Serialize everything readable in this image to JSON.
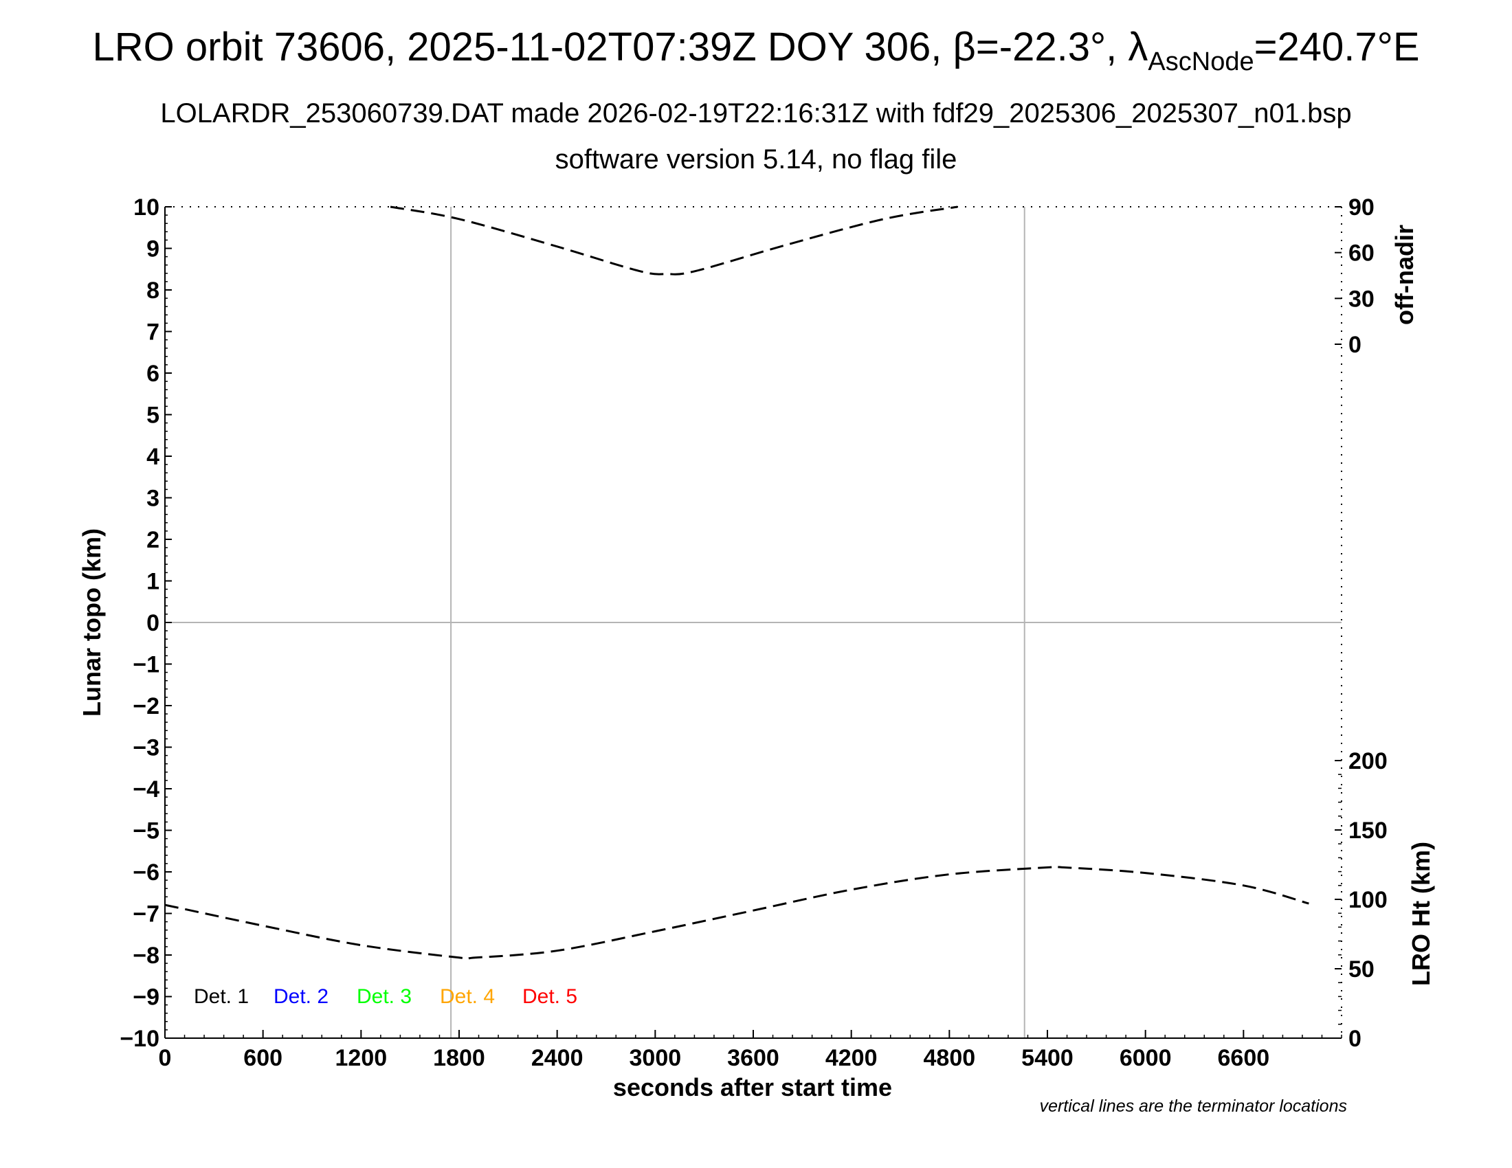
{
  "chart_data": {
    "type": "line",
    "title": {
      "prefix": "LRO orbit 73606, 2025-11-02T07:39Z DOY 306, ",
      "beta_symbol": "β",
      "beta_value": "=-22.3°, ",
      "lambda_symbol": "λ",
      "lambda_subscript": "AscNode",
      "lambda_value": "=240.7°E"
    },
    "subtitle1": "LOLARDR_253060739.DAT made 2026-02-19T22:16:31Z with fdf29_2025306_2025307_n01.bsp",
    "subtitle2": "software version 5.14, no flag file",
    "xlabel": "seconds after start time",
    "ylabel": "Lunar topo (km)",
    "right_label_top": "off-nadir",
    "right_label_bottom": "LRO Ht (km)",
    "note": "vertical lines are the terminator locations",
    "xlim": [
      0,
      7200
    ],
    "ylim": [
      -10,
      10
    ],
    "xticks": [
      0,
      600,
      1200,
      1800,
      2400,
      3000,
      3600,
      4200,
      4800,
      5400,
      6000,
      6600
    ],
    "yticks": [
      10,
      9,
      8,
      7,
      6,
      5,
      4,
      3,
      2,
      1,
      0,
      -1,
      -2,
      -3,
      -4,
      -5,
      -6,
      -7,
      -8,
      -9,
      -10
    ],
    "ytick_labels": [
      "10",
      "9",
      "8",
      "7",
      "6",
      "5",
      "4",
      "3",
      "2",
      "1",
      "0",
      "−1",
      "−2",
      "−3",
      "−4",
      "−5",
      "−6",
      "−7",
      "−8",
      "−9",
      "−10"
    ],
    "off_nadir_ticks": [
      {
        "label": "90",
        "value": 90
      },
      {
        "label": "60",
        "value": 60
      },
      {
        "label": "30",
        "value": 30
      },
      {
        "label": "0",
        "value": 0
      }
    ],
    "lro_ht_ticks": [
      {
        "label": "200",
        "value": 200
      },
      {
        "label": "150",
        "value": 150
      },
      {
        "label": "100",
        "value": 100
      },
      {
        "label": "50",
        "value": 50
      },
      {
        "label": "0",
        "value": 0
      }
    ],
    "terminator_lines_x": [
      1750,
      5260
    ],
    "grid": "horizontal line at 0 and terminator verticals",
    "legend_position": "bottom-left",
    "legend": [
      {
        "label": "Det. 1",
        "color": "#000000"
      },
      {
        "label": "Det. 2",
        "color": "#0000ff"
      },
      {
        "label": "Det. 3",
        "color": "#00ff00"
      },
      {
        "label": "Det. 4",
        "color": "#ffa500"
      },
      {
        "label": "Det. 5",
        "color": "#ff0000"
      }
    ],
    "series": [
      {
        "axis": "off-nadir (deg)",
        "style": "dashed",
        "x": [
          1380,
          1800,
          2400,
          2900,
          3070,
          3250,
          3800,
          4400,
          4850
        ],
        "values": [
          90,
          82,
          64,
          48,
          46,
          48,
          65,
          82,
          90
        ]
      },
      {
        "axis": "LRO Ht (km)",
        "style": "dashed",
        "x": [
          0,
          600,
          1200,
          1800,
          1900,
          2400,
          3000,
          3600,
          4200,
          4800,
          5400,
          5500,
          6000,
          6600,
          7000
        ],
        "values": [
          96,
          81,
          67,
          58,
          58,
          63,
          77,
          92,
          107,
          118,
          123,
          123,
          119,
          110,
          97
        ]
      }
    ]
  }
}
